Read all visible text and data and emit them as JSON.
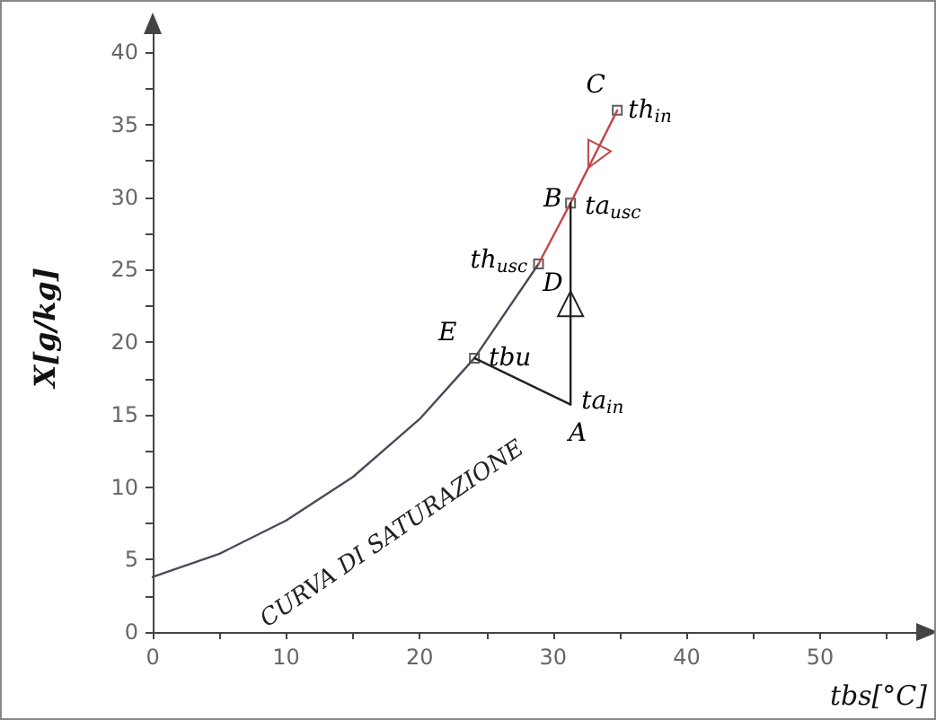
{
  "chart_data": {
    "type": "line",
    "xlabel": "tbs[°C]",
    "ylabel": "X[g/kg]",
    "xlim": [
      0,
      58
    ],
    "ylim": [
      0,
      42
    ],
    "xticks": [
      0,
      {
        "value": 5,
        "label": null
      },
      10,
      {
        "value": 15,
        "label": null
      },
      20,
      {
        "value": 25,
        "label": null
      },
      30,
      {
        "value": 35,
        "label": null
      },
      40,
      {
        "value": 45,
        "label": null
      },
      50,
      {
        "value": 55,
        "label": null
      }
    ],
    "yticks": [
      0,
      {
        "value": 2.5,
        "label": null
      },
      5,
      {
        "value": 7.5,
        "label": null
      },
      10,
      {
        "value": 12.5,
        "label": null
      },
      15,
      {
        "value": 17.5,
        "label": null
      },
      20,
      {
        "value": 22.5,
        "label": null
      },
      25,
      {
        "value": 27.5,
        "label": null
      },
      30,
      {
        "value": 32.5,
        "label": null
      },
      35,
      {
        "value": 37.5,
        "label": null
      },
      40
    ],
    "grid": false,
    "legend": false,
    "series": [
      {
        "name": "CURVA DI SATURAZIONE",
        "color": "#4a4a5a",
        "marker": "none",
        "x": [
          0,
          5,
          10,
          15,
          20,
          24.1,
          28.9
        ],
        "values": [
          3.8,
          5.4,
          7.7,
          10.7,
          14.7,
          18.9,
          25.4
        ]
      },
      {
        "color": "#c04848",
        "marker": "none",
        "x": [
          28.9,
          31.3,
          34.8
        ],
        "values": [
          25.4,
          29.6,
          36.0
        ]
      },
      {
        "color": "#222222",
        "marker": "none",
        "x": [
          31.3,
          24.1
        ],
        "values": [
          15.7,
          18.9
        ]
      },
      {
        "color": "#222222",
        "marker": "none",
        "x": [
          31.3,
          31.3
        ],
        "values": [
          15.7,
          29.6
        ]
      },
      {
        "type": "scatter",
        "color": "#333333",
        "marker": "square",
        "x": [
          34.8,
          31.3,
          28.9,
          24.1
        ],
        "values": [
          36.0,
          29.6,
          25.4,
          18.9
        ]
      }
    ],
    "annotations": [
      {
        "text": "C",
        "x": 34.8,
        "y": 36.0
      },
      {
        "text": "th$_{in}$",
        "x": 34.8,
        "y": 36.0
      },
      {
        "text": "B",
        "x": 31.3,
        "y": 29.6
      },
      {
        "text": "ta$_{usc}$",
        "x": 31.3,
        "y": 29.6
      },
      {
        "text": "th$_{usc}$",
        "x": 28.9,
        "y": 25.4
      },
      {
        "text": "D",
        "x": 28.9,
        "y": 25.4
      },
      {
        "text": "E",
        "x": 24.1,
        "y": 18.9
      },
      {
        "text": "tbu",
        "x": 24.1,
        "y": 18.9
      },
      {
        "text": "ta$_{in}$",
        "x": 31.3,
        "y": 15.7
      },
      {
        "text": "A",
        "x": 31.3,
        "y": 15.7
      }
    ]
  }
}
